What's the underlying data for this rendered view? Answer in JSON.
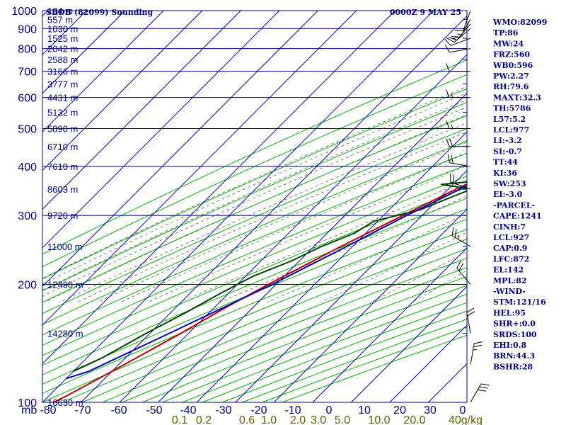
{
  "chart_data": {
    "type": "skew-t",
    "title": "SBDB (82099) Sounding",
    "time_label": "0000Z  9 MAY 25",
    "y_unit": "mb",
    "y_scale": "log",
    "xlim": [
      -80,
      30
    ],
    "ylim": [
      1000,
      100
    ],
    "pressure_ticks": [
      100,
      200,
      300,
      400,
      500,
      600,
      700,
      800,
      900,
      1000
    ],
    "temperature_ticks": [
      "-80",
      "-70",
      "-60",
      "-50",
      "-40",
      "-30",
      "-20",
      "-10",
      "0",
      "10",
      "20",
      "30",
      "0"
    ],
    "mixing_ratio_ticks": [
      "0.1",
      "0.2",
      "0.6",
      "1.0",
      "2.0",
      "3.0",
      "5.0",
      "10.0",
      "20.0",
      "40g/kg"
    ],
    "heights": [
      {
        "p": 100,
        "label": "16630 m"
      },
      {
        "p": 150,
        "label": "14280 m"
      },
      {
        "p": 200,
        "label": "12490 m"
      },
      {
        "p": 250,
        "label": "11000 m"
      },
      {
        "p": 300,
        "label": "9720 m"
      },
      {
        "p": 350,
        "label": "8603 m"
      },
      {
        "p": 400,
        "label": "7610 m"
      },
      {
        "p": 450,
        "label": "6710 m"
      },
      {
        "p": 500,
        "label": "5890 m"
      },
      {
        "p": 550,
        "label": "5132 m"
      },
      {
        "p": 600,
        "label": "4431 m"
      },
      {
        "p": 650,
        "label": "3777 m"
      },
      {
        "p": 700,
        "label": "3166 m"
      },
      {
        "p": 750,
        "label": "2588 m"
      },
      {
        "p": 800,
        "label": "2042 m"
      },
      {
        "p": 850,
        "label": "1525 m"
      },
      {
        "p": 900,
        "label": "1030 m"
      },
      {
        "p": 950,
        "label": "557 m"
      },
      {
        "p": 1000,
        "label": "104 m"
      }
    ],
    "series": [
      {
        "name": "temperature",
        "color": "#c00000",
        "points": [
          [
            1000,
            27.5
          ],
          [
            970,
            25
          ],
          [
            925,
            22
          ],
          [
            900,
            19
          ],
          [
            850,
            16
          ],
          [
            800,
            12.5
          ],
          [
            750,
            8.5
          ],
          [
            700,
            4.5
          ],
          [
            650,
            0.5
          ],
          [
            600,
            -3.5
          ],
          [
            550,
            -7
          ],
          [
            500,
            -11
          ],
          [
            450,
            -16
          ],
          [
            400,
            -21.5
          ],
          [
            350,
            -28
          ],
          [
            300,
            -35
          ],
          [
            250,
            -43
          ],
          [
            200,
            -52
          ],
          [
            175,
            -57
          ],
          [
            150,
            -62
          ],
          [
            120,
            -70
          ],
          [
            105,
            -75
          ],
          [
            100,
            -77
          ]
        ]
      },
      {
        "name": "dewpoint",
        "color": "#004000",
        "points": [
          [
            1000,
            24
          ],
          [
            970,
            22
          ],
          [
            925,
            19
          ],
          [
            900,
            17
          ],
          [
            850,
            14
          ],
          [
            800,
            11.5
          ],
          [
            760,
            6
          ],
          [
            740,
            4
          ],
          [
            700,
            0
          ],
          [
            650,
            -4
          ],
          [
            600,
            -8
          ],
          [
            560,
            -12
          ],
          [
            530,
            -12
          ],
          [
            500,
            -22
          ],
          [
            490,
            -22
          ],
          [
            480,
            -13
          ],
          [
            470,
            -28
          ],
          [
            460,
            -14
          ],
          [
            450,
            -22
          ],
          [
            440,
            -14
          ],
          [
            430,
            -26
          ],
          [
            420,
            -18
          ],
          [
            400,
            -26
          ],
          [
            390,
            -22
          ],
          [
            380,
            -26
          ],
          [
            370,
            -22
          ],
          [
            360,
            -33
          ],
          [
            350,
            -24
          ],
          [
            330,
            -28
          ],
          [
            310,
            -32
          ],
          [
            290,
            -41
          ],
          [
            270,
            -43
          ],
          [
            250,
            -48
          ],
          [
            230,
            -52
          ],
          [
            210,
            -58
          ],
          [
            190,
            -62
          ],
          [
            170,
            -66
          ],
          [
            150,
            -71
          ],
          [
            130,
            -76
          ],
          [
            120,
            -80
          ]
        ]
      },
      {
        "name": "parcel",
        "color": "#0000c0",
        "points": [
          [
            1000,
            28
          ],
          [
            925,
            24
          ],
          [
            850,
            18.5
          ],
          [
            800,
            15
          ],
          [
            700,
            7
          ],
          [
            600,
            -2
          ],
          [
            500,
            -11
          ],
          [
            400,
            -21
          ],
          [
            300,
            -34
          ],
          [
            250,
            -41.5
          ],
          [
            200,
            -51
          ],
          [
            150,
            -65
          ],
          [
            120,
            -76
          ],
          [
            115,
            -80
          ]
        ]
      }
    ],
    "wind_barbs": [
      {
        "p": 1000,
        "dir": 200,
        "kt": 10
      },
      {
        "p": 950,
        "dir": 210,
        "kt": 15
      },
      {
        "p": 925,
        "dir": 220,
        "kt": 15
      },
      {
        "p": 900,
        "dir": 230,
        "kt": 15
      },
      {
        "p": 850,
        "dir": 250,
        "kt": 10
      },
      {
        "p": 800,
        "dir": 260,
        "kt": 10
      },
      {
        "p": 700,
        "dir": 270,
        "kt": 10
      },
      {
        "p": 600,
        "dir": 270,
        "kt": 15
      },
      {
        "p": 500,
        "dir": 270,
        "kt": 15
      },
      {
        "p": 450,
        "dir": 270,
        "kt": 20
      },
      {
        "p": 400,
        "dir": 280,
        "kt": 20
      },
      {
        "p": 350,
        "dir": 290,
        "kt": 20
      },
      {
        "p": 250,
        "dir": 300,
        "kt": 25
      },
      {
        "p": 200,
        "dir": 320,
        "kt": 20
      },
      {
        "p": 150,
        "dir": 350,
        "kt": 20
      },
      {
        "p": 125,
        "dir": 10,
        "kt": 25
      },
      {
        "p": 100,
        "dir": 30,
        "kt": 30
      }
    ],
    "indices": [
      "WMO:82099",
      "TP:86",
      "MW:24",
      "FRZ:560",
      "WB0:596",
      "PW:2.27",
      "RH:79.6",
      "MAXT:32.3",
      "TH:5786",
      "L57:5.2",
      "LCL:977",
      "LI:-3.2",
      "SI:-0.7",
      "TT:44",
      "KI:36",
      "SW:253",
      "EI:-3.0",
      "-PARCEL-",
      "CAPE:1241",
      "CINH:7",
      "LCL:927",
      "CAP:0.9",
      "LFC:872",
      "EL:142",
      "MPL:82",
      "-WIND-",
      "STM:121/16",
      "HEL:95",
      "SHR+:0.0",
      "SRDS:100",
      "EHI:0.8",
      "BRN:44.3",
      "BSHR:28"
    ],
    "colors": {
      "isobar": "#000080",
      "isotherm": "#0000c0",
      "dry_adiabat": "#00b000",
      "moist_adiabat": "#606060",
      "mixing_ratio": "#6699dd",
      "mixing_ratio_label": "#606000"
    }
  }
}
